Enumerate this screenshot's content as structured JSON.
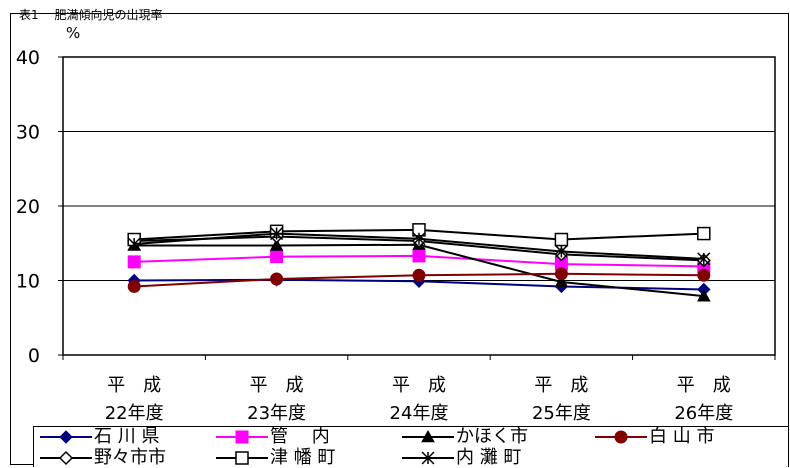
{
  "page_label": "表1 　肥満傾向児の出現率",
  "chart_data": {
    "type": "line",
    "unit_label": "%",
    "categories": [
      [
        "平　成",
        "22年度"
      ],
      [
        "平　成",
        "23年度"
      ],
      [
        "平　成",
        "24年度"
      ],
      [
        "平　成",
        "25年度"
      ],
      [
        "平　成",
        "26年度"
      ]
    ],
    "ylim": [
      0,
      40
    ],
    "yticks": [
      0,
      10,
      20,
      30,
      40
    ],
    "grid": true,
    "legend_position": "bottom",
    "series": [
      {
        "name": "石 川 県",
        "values": [
          10.0,
          10.1,
          9.9,
          9.2,
          8.8
        ],
        "color": "#000080",
        "marker": "diamond"
      },
      {
        "name": "管　 内",
        "values": [
          12.5,
          13.2,
          13.3,
          12.2,
          11.9
        ],
        "color": "#ff00ff",
        "marker": "square"
      },
      {
        "name": "かほく市",
        "values": [
          14.7,
          14.7,
          14.8,
          9.8,
          7.9
        ],
        "color": "#000000",
        "marker": "triangle"
      },
      {
        "name": "白 山 市",
        "values": [
          9.2,
          10.2,
          10.7,
          10.9,
          10.7
        ],
        "color": "#800000",
        "marker": "circle"
      },
      {
        "name": "野々市市",
        "values": [
          15.3,
          15.9,
          15.3,
          13.5,
          12.7
        ],
        "color": "#000000",
        "marker": "open-diamond"
      },
      {
        "name": "津 幡 町",
        "values": [
          15.5,
          16.6,
          16.8,
          15.5,
          16.3
        ],
        "color": "#000000",
        "marker": "open-square"
      },
      {
        "name": "内 灘 町",
        "values": [
          14.9,
          16.3,
          15.6,
          13.9,
          12.9
        ],
        "color": "#000000",
        "marker": "asterisk"
      }
    ]
  }
}
